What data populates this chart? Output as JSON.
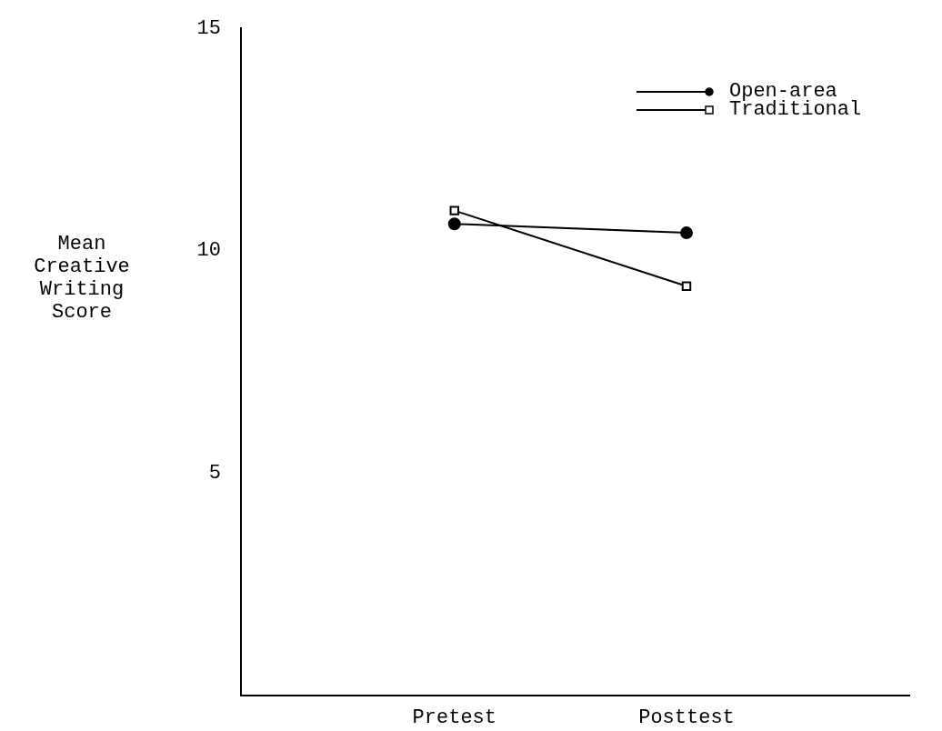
{
  "chart_data": {
    "type": "line",
    "ylabel": "Mean Creative Writing Score",
    "categories": [
      "Pretest",
      "Posttest"
    ],
    "series": [
      {
        "name": "Open-area",
        "color": "#000000",
        "marker": "circle",
        "values": [
          10.6,
          10.4
        ]
      },
      {
        "name": "Traditional",
        "color": "#000000",
        "marker": "square",
        "values": [
          10.9,
          9.2
        ]
      }
    ],
    "ylim": [
      0,
      15
    ],
    "yticks": [
      5,
      10,
      15
    ],
    "grid": false,
    "legend": "top right",
    "line_style": "solid"
  }
}
